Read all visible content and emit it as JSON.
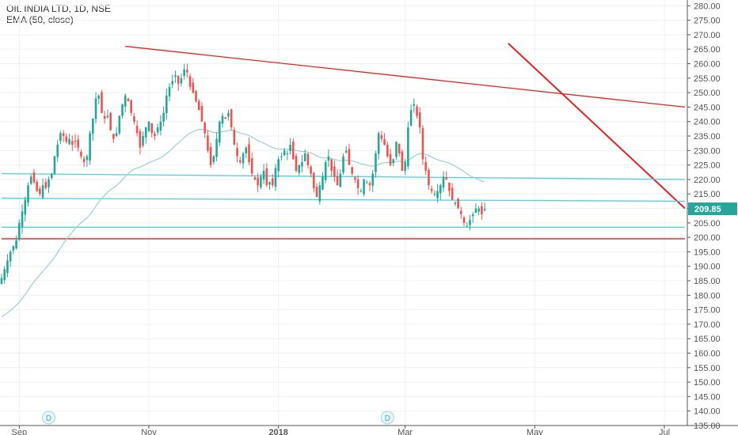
{
  "chart_data": {
    "type": "candlestick",
    "title": "OIL INDIA LTD, 1D, NSE",
    "indicator_label": "EMA (50, close)",
    "ylim": [
      135,
      282
    ],
    "y_ticks": [
      135,
      140,
      145,
      150,
      155,
      160,
      165,
      170,
      175,
      180,
      185,
      190,
      195,
      200,
      205,
      210,
      215,
      220,
      225,
      230,
      235,
      240,
      245,
      250,
      255,
      260,
      265,
      270,
      275,
      280
    ],
    "x_labels": [
      {
        "label": "Sep",
        "index": 6
      },
      {
        "label": "Nov",
        "index": 50
      },
      {
        "label": "2018",
        "index": 94
      },
      {
        "label": "Mar",
        "index": 137
      },
      {
        "label": "May",
        "index": 181
      },
      {
        "label": "Jul",
        "index": 225
      }
    ],
    "last_price": "209.85",
    "dividend_markers": [
      {
        "label": "D",
        "index": 16
      },
      {
        "label": "D",
        "index": 131
      }
    ],
    "closes": [
      186,
      189,
      192,
      195,
      197,
      199,
      205,
      209,
      213,
      218,
      221,
      219,
      216,
      215,
      218,
      217,
      220,
      222,
      228,
      232,
      236,
      235,
      233,
      234,
      232,
      233,
      231,
      228,
      226,
      228,
      236,
      241,
      248,
      249,
      243,
      241,
      242,
      237,
      234,
      236,
      242,
      246,
      249,
      247,
      243,
      240,
      236,
      231,
      235,
      238,
      240,
      236,
      235,
      238,
      240,
      243,
      249,
      252,
      254,
      256,
      253,
      255,
      258,
      257,
      252,
      250,
      247,
      244,
      240,
      236,
      230,
      225,
      228,
      234,
      240,
      242,
      241,
      243,
      238,
      232,
      228,
      226,
      229,
      231,
      226,
      222,
      220,
      218,
      221,
      223,
      218,
      219,
      218,
      224,
      227,
      228,
      230,
      229,
      232,
      227,
      223,
      225,
      226,
      229,
      225,
      222,
      217,
      214,
      218,
      221,
      226,
      228,
      223,
      221,
      218,
      222,
      228,
      230,
      225,
      222,
      220,
      217,
      216,
      220,
      219,
      218,
      222,
      229,
      236,
      234,
      232,
      228,
      225,
      227,
      233,
      229,
      223,
      226,
      238,
      244,
      246,
      242,
      238,
      227,
      223,
      218,
      216,
      215,
      216,
      218,
      221,
      220,
      216,
      213,
      212,
      210,
      208,
      205,
      204,
      206,
      208,
      210,
      210,
      208,
      209.85
    ],
    "overlay_lines": [
      {
        "name": "downtrend-top",
        "color": "#e02424",
        "from": {
          "index": 42,
          "price": 266
        },
        "to": {
          "index": 232,
          "price": 245
        }
      },
      {
        "name": "downtrend-recent",
        "color": "#e02424",
        "from": {
          "index": 172,
          "price": 267
        },
        "to": {
          "index": 232,
          "price": 210
        }
      },
      {
        "name": "support-red",
        "color": "#e02424",
        "from": {
          "index": 0,
          "price": 199.5
        },
        "to": {
          "index": 232,
          "price": 199.5
        }
      },
      {
        "name": "support-cyan-1",
        "color": "#4dd0e1",
        "from": {
          "index": 0,
          "price": 222
        },
        "to": {
          "index": 232,
          "price": 220
        }
      },
      {
        "name": "support-cyan-2",
        "color": "#4dd0e1",
        "from": {
          "index": 0,
          "price": 213.5
        },
        "to": {
          "index": 232,
          "price": 212.5
        }
      },
      {
        "name": "support-cyan-3",
        "color": "#4dd0e1",
        "from": {
          "index": 0,
          "price": 203.5
        },
        "to": {
          "index": 232,
          "price": 203.5
        }
      }
    ],
    "colors": {
      "up": "#26a69a",
      "down": "#ef5350",
      "ema": "#9ecfd6",
      "grid": "#eef0f3",
      "axis_text": "#555",
      "price_badge": "#26a69a"
    }
  }
}
